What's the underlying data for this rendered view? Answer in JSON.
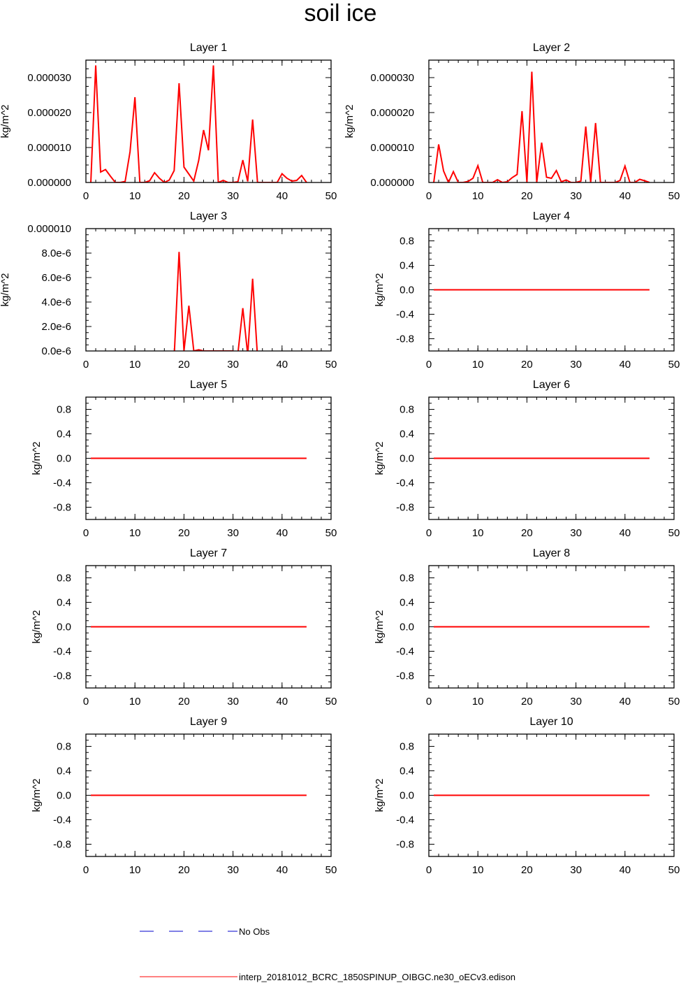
{
  "title": "soil ice",
  "colors": {
    "model": "#ff0000",
    "obs": "#0000cc",
    "axis": "#000000"
  },
  "legend": {
    "obs_label": "No Obs",
    "model_label": "interp_20181012_BCRC_1850SPINUP_OIBGC.ne30_oECv3.edison"
  },
  "chart_data": [
    {
      "type": "line",
      "title": "Layer 1",
      "xlabel": "",
      "ylabel": "kg/m^2",
      "xlim": [
        0,
        50
      ],
      "ylim": [
        0,
        3.5e-05
      ],
      "xticks": [
        0,
        10,
        20,
        30,
        40,
        50
      ],
      "yticks": [
        0,
        1e-05,
        2e-05,
        3e-05
      ],
      "ytick_labels": [
        "0.000000",
        "0.000010",
        "0.000020",
        "0.000030"
      ],
      "series": [
        {
          "x": [
            1,
            2,
            3,
            4,
            5,
            6,
            7,
            8,
            9,
            10,
            11,
            12,
            13,
            14,
            15,
            16,
            17,
            18,
            19,
            20,
            21,
            22,
            23,
            24,
            25,
            26,
            27,
            28,
            29,
            30,
            31,
            32,
            33,
            34,
            35,
            36,
            37,
            38,
            39,
            40,
            41,
            42,
            43,
            44,
            45
          ],
          "values": [
            0,
            3.35e-05,
            3e-06,
            3.7e-06,
            1.8e-06,
            0,
            0,
            3e-07,
            8.8e-06,
            2.44e-05,
            0,
            0,
            5e-07,
            2.8e-06,
            1.2e-06,
            0,
            7e-07,
            3.4e-06,
            2.84e-05,
            4.4e-06,
            2.4e-06,
            4e-07,
            6.3e-06,
            1.5e-05,
            9.2e-06,
            3.35e-05,
            0,
            6e-07,
            0,
            0,
            2e-07,
            6.4e-06,
            3e-07,
            1.8e-05,
            0,
            0,
            0,
            0,
            0,
            2.5e-06,
            1.2e-06,
            4e-07,
            6e-07,
            2e-06,
            0
          ]
        }
      ]
    },
    {
      "type": "line",
      "title": "Layer 2",
      "xlabel": "",
      "ylabel": "kg/m^2",
      "xlim": [
        0,
        50
      ],
      "ylim": [
        0,
        3.5e-05
      ],
      "xticks": [
        0,
        10,
        20,
        30,
        40,
        50
      ],
      "yticks": [
        0,
        1e-05,
        2e-05,
        3e-05
      ],
      "ytick_labels": [
        "0.000000",
        "0.000010",
        "0.000020",
        "0.000030"
      ],
      "series": [
        {
          "x": [
            1,
            2,
            3,
            4,
            5,
            6,
            7,
            8,
            9,
            10,
            11,
            12,
            13,
            14,
            15,
            16,
            17,
            18,
            19,
            20,
            21,
            22,
            23,
            24,
            25,
            26,
            27,
            28,
            29,
            30,
            31,
            32,
            33,
            34,
            35,
            36,
            37,
            38,
            39,
            40,
            41,
            42,
            43,
            44,
            45
          ],
          "values": [
            0,
            1.09e-05,
            3.3e-06,
            0,
            3.1e-06,
            0,
            0,
            3e-07,
            1.2e-06,
            4.8e-06,
            0,
            0,
            0,
            8e-07,
            0,
            2e-07,
            1.4e-06,
            2.3e-06,
            2.04e-05,
            0,
            3.17e-05,
            0,
            1.14e-05,
            1.5e-06,
            1.2e-06,
            3.4e-06,
            2e-07,
            7e-07,
            0,
            0,
            4e-07,
            1.6e-05,
            0,
            1.7e-05,
            0,
            0,
            0,
            0,
            6e-07,
            4.7e-06,
            0,
            0,
            9e-07,
            5e-07,
            0
          ]
        }
      ]
    },
    {
      "type": "line",
      "title": "Layer 3",
      "xlabel": "",
      "ylabel": "kg/m^2",
      "xlim": [
        0,
        50
      ],
      "ylim": [
        0,
        1e-05
      ],
      "xticks": [
        0,
        10,
        20,
        30,
        40,
        50
      ],
      "yticks": [
        0,
        2e-06,
        4e-06,
        6e-06,
        8e-06,
        1e-05
      ],
      "ytick_labels": [
        "0.0e-6",
        "2.0e-6",
        "4.0e-6",
        "6.0e-6",
        "8.0e-6",
        "0.000010"
      ],
      "series": [
        {
          "x": [
            18,
            19,
            20,
            21,
            22,
            23,
            24,
            25,
            26,
            27,
            28,
            29,
            30,
            31,
            32,
            33,
            34,
            35
          ],
          "values": [
            -5e-07,
            8.1e-06,
            0,
            3.7e-06,
            0,
            1e-07,
            0,
            0,
            0,
            0,
            0,
            0,
            0,
            -2e-07,
            3.5e-06,
            -3e-07,
            5.9e-06,
            -5e-07
          ]
        }
      ]
    },
    {
      "type": "line",
      "title": "Layer 4",
      "xlabel": "",
      "ylabel": "kg/m^2",
      "xlim": [
        0,
        50
      ],
      "ylim": [
        -1,
        1
      ],
      "xticks": [
        0,
        10,
        20,
        30,
        40,
        50
      ],
      "yticks": [
        -0.8,
        -0.4,
        0,
        0.4,
        0.8
      ],
      "ytick_labels": [
        "-0.8",
        "-0.4",
        "0.0",
        "0.4",
        "0.8"
      ],
      "series": [
        {
          "x": [
            1,
            45
          ],
          "values": [
            0,
            0
          ]
        }
      ]
    },
    {
      "type": "line",
      "title": "Layer 5",
      "xlabel": "",
      "ylabel": "kg/m^2",
      "xlim": [
        0,
        50
      ],
      "ylim": [
        -1,
        1
      ],
      "xticks": [
        0,
        10,
        20,
        30,
        40,
        50
      ],
      "yticks": [
        -0.8,
        -0.4,
        0,
        0.4,
        0.8
      ],
      "ytick_labels": [
        "-0.8",
        "-0.4",
        "0.0",
        "0.4",
        "0.8"
      ],
      "series": [
        {
          "x": [
            1,
            45
          ],
          "values": [
            0,
            0
          ]
        }
      ]
    },
    {
      "type": "line",
      "title": "Layer 6",
      "xlabel": "",
      "ylabel": "kg/m^2",
      "xlim": [
        0,
        50
      ],
      "ylim": [
        -1,
        1
      ],
      "xticks": [
        0,
        10,
        20,
        30,
        40,
        50
      ],
      "yticks": [
        -0.8,
        -0.4,
        0,
        0.4,
        0.8
      ],
      "ytick_labels": [
        "-0.8",
        "-0.4",
        "0.0",
        "0.4",
        "0.8"
      ],
      "series": [
        {
          "x": [
            1,
            45
          ],
          "values": [
            0,
            0
          ]
        }
      ]
    },
    {
      "type": "line",
      "title": "Layer 7",
      "xlabel": "",
      "ylabel": "kg/m^2",
      "xlim": [
        0,
        50
      ],
      "ylim": [
        -1,
        1
      ],
      "xticks": [
        0,
        10,
        20,
        30,
        40,
        50
      ],
      "yticks": [
        -0.8,
        -0.4,
        0,
        0.4,
        0.8
      ],
      "ytick_labels": [
        "-0.8",
        "-0.4",
        "0.0",
        "0.4",
        "0.8"
      ],
      "series": [
        {
          "x": [
            1,
            45
          ],
          "values": [
            0,
            0
          ]
        }
      ]
    },
    {
      "type": "line",
      "title": "Layer 8",
      "xlabel": "",
      "ylabel": "kg/m^2",
      "xlim": [
        0,
        50
      ],
      "ylim": [
        -1,
        1
      ],
      "xticks": [
        0,
        10,
        20,
        30,
        40,
        50
      ],
      "yticks": [
        -0.8,
        -0.4,
        0,
        0.4,
        0.8
      ],
      "ytick_labels": [
        "-0.8",
        "-0.4",
        "0.0",
        "0.4",
        "0.8"
      ],
      "series": [
        {
          "x": [
            1,
            45
          ],
          "values": [
            0,
            0
          ]
        }
      ]
    },
    {
      "type": "line",
      "title": "Layer 9",
      "xlabel": "",
      "ylabel": "kg/m^2",
      "xlim": [
        0,
        50
      ],
      "ylim": [
        -1,
        1
      ],
      "xticks": [
        0,
        10,
        20,
        30,
        40,
        50
      ],
      "yticks": [
        -0.8,
        -0.4,
        0,
        0.4,
        0.8
      ],
      "ytick_labels": [
        "-0.8",
        "-0.4",
        "0.0",
        "0.4",
        "0.8"
      ],
      "series": [
        {
          "x": [
            1,
            45
          ],
          "values": [
            0,
            0
          ]
        }
      ]
    },
    {
      "type": "line",
      "title": "Layer 10",
      "xlabel": "",
      "ylabel": "kg/m^2",
      "xlim": [
        0,
        50
      ],
      "ylim": [
        -1,
        1
      ],
      "xticks": [
        0,
        10,
        20,
        30,
        40,
        50
      ],
      "yticks": [
        -0.8,
        -0.4,
        0,
        0.4,
        0.8
      ],
      "ytick_labels": [
        "-0.8",
        "-0.4",
        "0.0",
        "0.4",
        "0.8"
      ],
      "series": [
        {
          "x": [
            1,
            45
          ],
          "values": [
            0,
            0
          ]
        }
      ]
    }
  ]
}
